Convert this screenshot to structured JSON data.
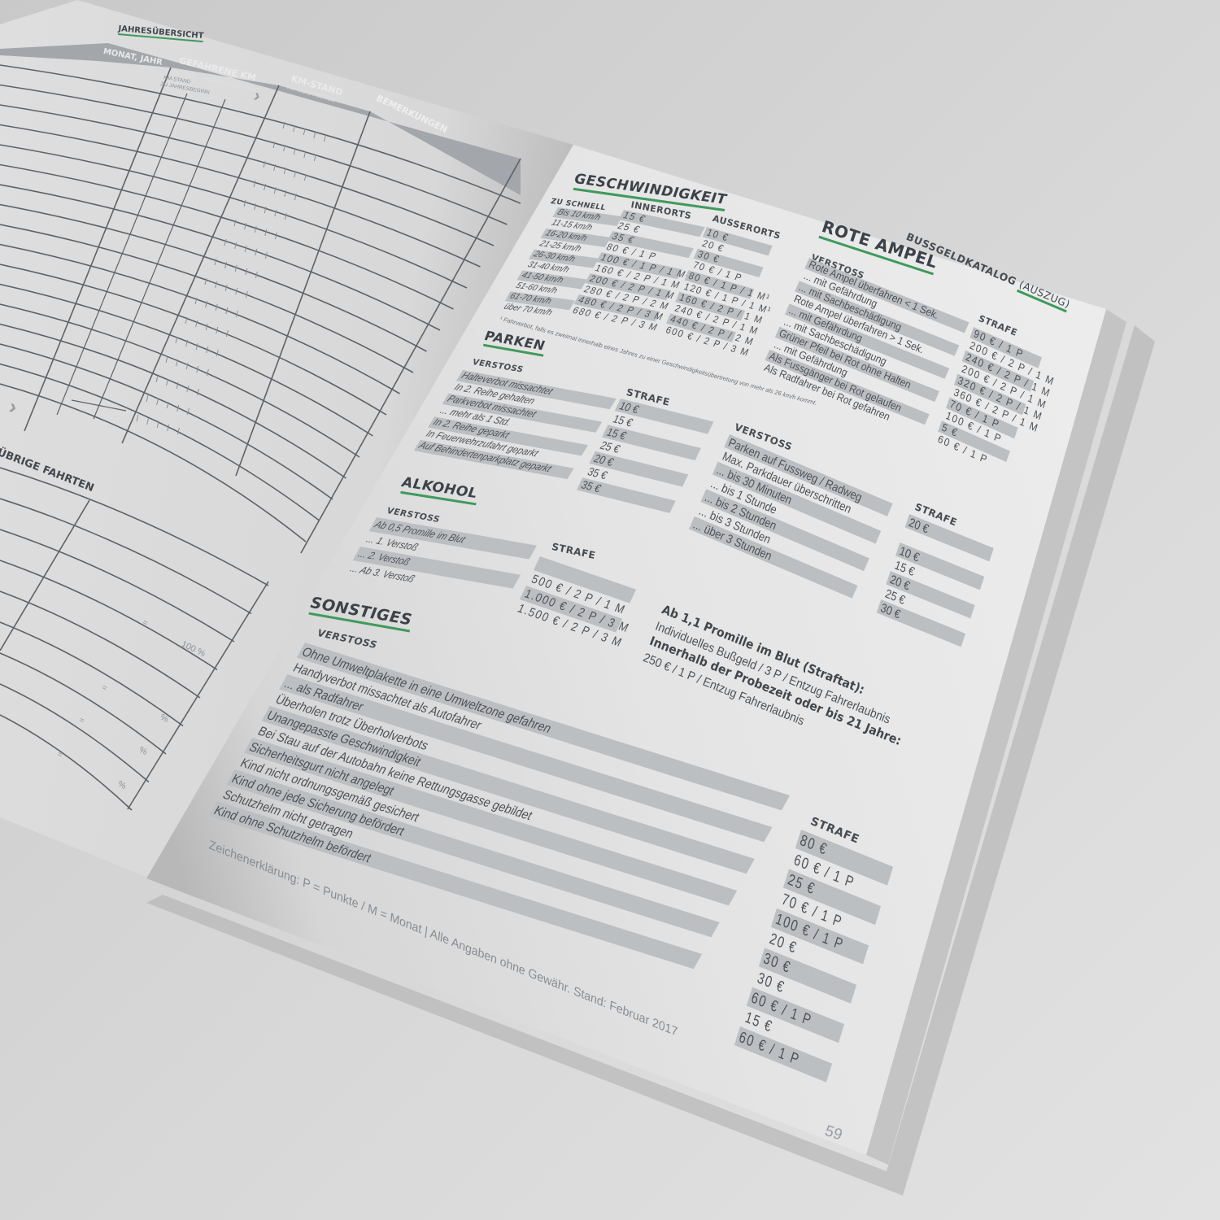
{
  "left_page": {
    "section_title": "JAHRESÜBERSICHT",
    "headers": {
      "month_year": "MONAT, JAHR",
      "driven_km": "GEFAHRENE KM",
      "driven_km_sub": "DIENSTL. | WOHN/ARB | PRIVAT",
      "km_start_1": "KM-STAND",
      "km_start_2": "ZU JAHRESBEGINN",
      "km_stand": "KM-STAND",
      "km_stand_sub": "AM MONATSENDE",
      "remarks": "BEMERKUNGEN"
    },
    "other_trips_title": "ÜBRIGE FAHRTEN",
    "total_percent": "100 %",
    "equals": "=",
    "percent": "%",
    "arrow_icon": "chevron-right-icon"
  },
  "right_page": {
    "catalog_title": "BUSSGELDKATALOG",
    "catalog_subtitle": "(AUSZUG)",
    "speed": {
      "title": "GESCHWINDIGKEIT",
      "col_speed": "ZU SCHNELL",
      "col_urban": "INNERORTS",
      "col_rural": "AUSSERORTS",
      "rows": [
        {
          "speed": "Bis 10 km/h",
          "urban": "15 €",
          "rural": "10 €"
        },
        {
          "speed": "11-15 km/h",
          "urban": "25 €",
          "rural": "20 €"
        },
        {
          "speed": "16-20 km/h",
          "urban": "35 €",
          "rural": "30 €"
        },
        {
          "speed": "21-25 km/h",
          "urban": "80 € / 1 P",
          "rural": "70 € / 1 P"
        },
        {
          "speed": "26-30 km/h",
          "urban": "100 € / 1 P / 1 M¹",
          "rural": "80 € / 1 P / 1 M¹"
        },
        {
          "speed": "31-40 km/h",
          "urban": "160 € / 2 P / 1 M",
          "rural": "120 € / 1 P / 1 M¹"
        },
        {
          "speed": "41-50 km/h",
          "urban": "200 € / 2 P / 1 M",
          "rural": "160 € / 2 P / 1 M"
        },
        {
          "speed": "51-60 km/h",
          "urban": "280 € / 2 P / 2 M",
          "rural": "240 € / 2 P / 1 M"
        },
        {
          "speed": "61-70 km/h",
          "urban": "480 € / 2 P / 3 M",
          "rural": "440 € / 2 P / 2 M"
        },
        {
          "speed": "über 70 km/h",
          "urban": "680 € / 2 P / 3 M",
          "rural": "600 € / 2 P / 3 M"
        }
      ],
      "footnote": "¹ Fahrverbot, falls es zweimal innerhalb eines Jahres zu einer Geschwindigkeitsübertretung von mehr als 26 km/h kommt."
    },
    "red_light": {
      "title": "ROTE AMPEL",
      "col_offense": "VERSTOSS",
      "col_penalty": "STRAFE",
      "rows": [
        {
          "offense": "Rote Ampel überfahren < 1 Sek.",
          "penalty": "90 € / 1 P"
        },
        {
          "offense": "... mit Gefährdung",
          "penalty": "200 € / 2 P / 1 M"
        },
        {
          "offense": "... mit Sachbeschädigung",
          "penalty": "240 € / 2 P / 1 M"
        },
        {
          "offense": "Rote Ampel überfahren > 1 Sek.",
          "penalty": "200 € / 2 P / 1 M"
        },
        {
          "offense": "... mit Gefährdung",
          "penalty": "320 € / 2 P / 1 M"
        },
        {
          "offense": "... mit Sachbeschädigung",
          "penalty": "360 € / 2 P / 1 M"
        },
        {
          "offense": "Grüner Pfeil bei Rot ohne Halten",
          "penalty": "70 € / 1 P"
        },
        {
          "offense": "... mit Gefährdung",
          "penalty": "100 € / 1 P"
        },
        {
          "offense": "Als Fussgänger bei Rot gelaufen",
          "penalty": "5 €"
        },
        {
          "offense": "Als Radfahrer bei Rot gefahren",
          "penalty": "60 € / 1 P"
        }
      ]
    },
    "parking": {
      "title": "PARKEN",
      "col_offense": "VERSTOSS",
      "col_penalty": "STRAFE",
      "rows": [
        {
          "offense": "Halteverbot missachtet",
          "penalty": "10 €"
        },
        {
          "offense": "In 2. Reihe gehalten",
          "penalty": "15 €"
        },
        {
          "offense": "Parkverbot missachtet",
          "penalty": "15 €"
        },
        {
          "offense": "... mehr als 1 Std.",
          "penalty": "25 €"
        },
        {
          "offense": "In 2. Reihe geparkt",
          "penalty": "20 €"
        },
        {
          "offense": "In Feuerwehrzufahrt geparkt",
          "penalty": "35 €"
        },
        {
          "offense": "Auf Behindertenparkplatz geparkt",
          "penalty": "35 €"
        }
      ]
    },
    "parking_2": {
      "col_offense": "VERSTOSS",
      "col_penalty": "STRAFE",
      "rows": [
        {
          "offense": "Parken auf Fussweg / Radweg",
          "penalty": "20 €"
        },
        {
          "offense": "Max. Parkdauer überschritten",
          "penalty": ""
        },
        {
          "offense": "... bis 30 Minuten",
          "penalty": "10 €"
        },
        {
          "offense": "... bis 1 Stunde",
          "penalty": "15 €"
        },
        {
          "offense": "... bis 2 Stunden",
          "penalty": "20 €"
        },
        {
          "offense": "... bis 3 Stunden",
          "penalty": "25 €"
        },
        {
          "offense": "... über 3 Stunden",
          "penalty": "30 €"
        }
      ]
    },
    "alcohol": {
      "title": "ALKOHOL",
      "col_offense": "VERSTOSS",
      "col_penalty": "STRAFE",
      "rows": [
        {
          "offense": "Ab 0,5 Promille im Blut",
          "penalty": ""
        },
        {
          "offense": "... 1. Verstoß",
          "penalty": "500 € / 2 P / 1 M"
        },
        {
          "offense": "... 2. Verstoß",
          "penalty": "1.000 € / 2 P / 3 M"
        },
        {
          "offense": "... Ab 3. Verstoß",
          "penalty": "1.500 € / 2 P / 3 M"
        }
      ]
    },
    "alcohol_note": {
      "line1": "Ab 1,1 Promille im Blut (Straftat):",
      "line2": "Individuelles Bußgeld / 3 P / Entzug Fahrerlaubnis",
      "line3": "Innerhalb der Probezeit oder bis 21 Jahre:",
      "line4": "250 € / 1 P / Entzug Fahrerlaubnis"
    },
    "misc": {
      "title": "SONSTIGES",
      "col_offense": "VERSTOSS",
      "col_penalty": "STRAFE",
      "rows": [
        {
          "offense": "Ohne Umweltplakette in eine Umweltzone gefahren",
          "penalty": "80 €"
        },
        {
          "offense": "Handyverbot missachtet als Autofahrer",
          "penalty": "60 € / 1 P"
        },
        {
          "offense": "... als Radfahrer",
          "penalty": "25 €"
        },
        {
          "offense": "Überholen trotz Überholverbots",
          "penalty": "70 € / 1 P"
        },
        {
          "offense": "Unangepasste Geschwindigkeit",
          "penalty": "100 € / 1 P"
        },
        {
          "offense": "Bei Stau auf der Autobahn keine Rettungsgasse gebildet",
          "penalty": "20 €"
        },
        {
          "offense": "Sicherheitsgurt nicht angelegt",
          "penalty": "30 €"
        },
        {
          "offense": "Kind nicht ordnungsgemäß gesichert",
          "penalty": "30 €"
        },
        {
          "offense": "Kind ohne jede Sicherung befördert",
          "penalty": "60 € / 1 P"
        },
        {
          "offense": "Schutzhelm nicht getragen",
          "penalty": "15 €"
        },
        {
          "offense": "Kind ohne Schutzhelm befördert",
          "penalty": "60 € / 1 P"
        }
      ]
    },
    "legend": "Zeichenerklärung: P = Punkte / M = Monat | Alle Angaben ohne Gewähr. Stand: Februar 2017",
    "page_number": "59"
  },
  "colors": {
    "accent_green": "#3f9a5c",
    "row_band": "#bcbfc2",
    "header_band": "#a3a7ac",
    "text": "#4b5056"
  }
}
